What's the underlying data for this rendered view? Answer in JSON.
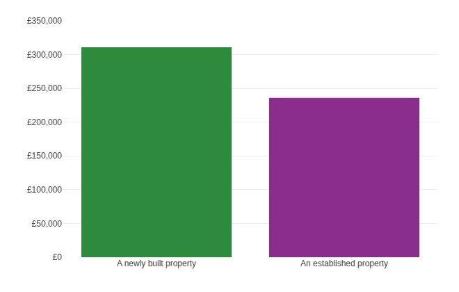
{
  "chart_data": {
    "type": "bar",
    "categories": [
      "A newly built property",
      "An established property"
    ],
    "values": [
      311000,
      236000
    ],
    "colors": [
      "#2e8b3e",
      "#8b2d8b"
    ],
    "ylim": [
      0,
      350000
    ],
    "yticks": [
      {
        "value": 0,
        "label": "£0"
      },
      {
        "value": 50000,
        "label": "£50,000"
      },
      {
        "value": 100000,
        "label": "£100,000"
      },
      {
        "value": 150000,
        "label": "£150,000"
      },
      {
        "value": 200000,
        "label": "£200,000"
      },
      {
        "value": 250000,
        "label": "£250,000"
      },
      {
        "value": 300000,
        "label": "£300,000"
      },
      {
        "value": 350000,
        "label": "£350,000"
      }
    ],
    "grid": true
  }
}
